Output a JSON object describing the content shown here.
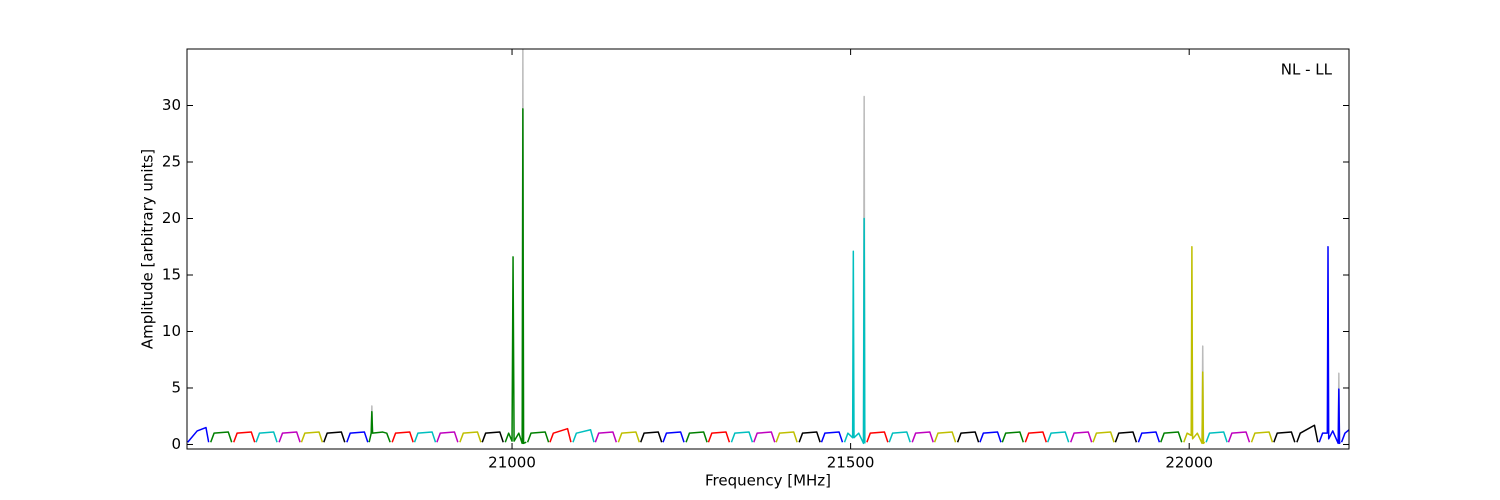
{
  "chart_data": {
    "type": "line",
    "xlabel": "Frequency [MHz]",
    "ylabel": "Amplitude [arbitrary units]",
    "annotation": "NL - LL",
    "xlim": [
      20520,
      22236
    ],
    "ylim": [
      -0.4,
      35
    ],
    "xticks": [
      21000,
      21500,
      22000
    ],
    "yticks": [
      0,
      5,
      10,
      15,
      20,
      25,
      30
    ],
    "series": [
      {
        "color": "#bbbbbb",
        "x": [
          20792,
          20793,
          20794,
          20900,
          21015,
          21016,
          21017,
          21300,
          21519,
          21520,
          21521,
          21800,
          22019,
          22020,
          22021,
          22100,
          22220,
          22221,
          22222
        ],
        "values": [
          1,
          3.4,
          1,
          null,
          0.1,
          35,
          0.1,
          null,
          0.1,
          30.8,
          0.1,
          null,
          0.1,
          8.7,
          0.1,
          null,
          0.1,
          6.3,
          0.1
        ]
      },
      {
        "color": "#0000ff",
        "x": [
          20521,
          20535,
          20548,
          20552
        ],
        "values": [
          0.2,
          1.2,
          1.5,
          0.2
        ]
      },
      {
        "color": "#008000",
        "x": [
          20555,
          20560,
          20581,
          20586
        ],
        "values": [
          0.2,
          1.0,
          1.1,
          0.2
        ]
      },
      {
        "color": "#ff0000",
        "x": [
          20589,
          20594,
          20615,
          20620
        ],
        "values": [
          0.2,
          1.0,
          1.1,
          0.2
        ]
      },
      {
        "color": "#00bfbf",
        "x": [
          20622,
          20627,
          20648,
          20653
        ],
        "values": [
          0.2,
          1.0,
          1.1,
          0.2
        ]
      },
      {
        "color": "#bf00bf",
        "x": [
          20656,
          20661,
          20682,
          20687
        ],
        "values": [
          0.2,
          1.0,
          1.1,
          0.2
        ]
      },
      {
        "color": "#bfbf00",
        "x": [
          20689,
          20694,
          20715,
          20720
        ],
        "values": [
          0.2,
          1.0,
          1.1,
          0.2
        ]
      },
      {
        "color": "#000000",
        "x": [
          20722,
          20727,
          20748,
          20753
        ],
        "values": [
          0.2,
          1.0,
          1.1,
          0.2
        ]
      },
      {
        "color": "#0000ff",
        "x": [
          20756,
          20761,
          20782,
          20787
        ],
        "values": [
          0.2,
          1.0,
          1.1,
          0.2
        ]
      },
      {
        "color": "#008000",
        "x": [
          20789,
          20792,
          20793,
          20794,
          20809,
          20815,
          20820
        ],
        "values": [
          0.2,
          1.0,
          2.9,
          1.0,
          1.1,
          1.0,
          0.2
        ]
      },
      {
        "color": "#ff0000",
        "x": [
          20823,
          20828,
          20849,
          20854
        ],
        "values": [
          0.2,
          1.0,
          1.1,
          0.2
        ]
      },
      {
        "color": "#00bfbf",
        "x": [
          20856,
          20861,
          20882,
          20887
        ],
        "values": [
          0.2,
          1.0,
          1.1,
          0.2
        ]
      },
      {
        "color": "#bf00bf",
        "x": [
          20889,
          20894,
          20915,
          20920
        ],
        "values": [
          0.2,
          1.0,
          1.1,
          0.2
        ]
      },
      {
        "color": "#bfbf00",
        "x": [
          20923,
          20928,
          20949,
          20954
        ],
        "values": [
          0.2,
          1.0,
          1.1,
          0.2
        ]
      },
      {
        "color": "#000000",
        "x": [
          20956,
          20961,
          20982,
          20987
        ],
        "values": [
          0.2,
          1.0,
          1.1,
          0.2
        ]
      },
      {
        "color": "#008000",
        "x": [
          20990,
          20995,
          21000,
          21001.5,
          21003,
          21010,
          21015,
          21016,
          21017,
          21021
        ],
        "values": [
          0.2,
          1.0,
          0.3,
          16.6,
          0.3,
          1.0,
          0.1,
          29.7,
          0.1,
          0.2
        ]
      },
      {
        "color": "#008000",
        "x": [
          21023,
          21028,
          21049,
          21054
        ],
        "values": [
          0.2,
          1.0,
          1.1,
          0.2
        ]
      },
      {
        "color": "#ff0000",
        "x": [
          21056,
          21061,
          21082,
          21087
        ],
        "values": [
          0.2,
          1.0,
          1.4,
          0.2
        ]
      },
      {
        "color": "#00bfbf",
        "x": [
          21090,
          21095,
          21116,
          21121
        ],
        "values": [
          0.2,
          1.0,
          1.3,
          0.2
        ]
      },
      {
        "color": "#bf00bf",
        "x": [
          21123,
          21128,
          21149,
          21154
        ],
        "values": [
          0.2,
          1.0,
          1.1,
          0.2
        ]
      },
      {
        "color": "#bfbf00",
        "x": [
          21157,
          21162,
          21183,
          21188
        ],
        "values": [
          0.2,
          1.0,
          1.1,
          0.2
        ]
      },
      {
        "color": "#000000",
        "x": [
          21190,
          21195,
          21216,
          21221
        ],
        "values": [
          0.2,
          1.0,
          1.1,
          0.2
        ]
      },
      {
        "color": "#0000ff",
        "x": [
          21223,
          21228,
          21249,
          21254
        ],
        "values": [
          0.2,
          1.0,
          1.1,
          0.2
        ]
      },
      {
        "color": "#008000",
        "x": [
          21257,
          21262,
          21283,
          21288
        ],
        "values": [
          0.2,
          1.0,
          1.1,
          0.2
        ]
      },
      {
        "color": "#ff0000",
        "x": [
          21290,
          21295,
          21316,
          21321
        ],
        "values": [
          0.2,
          1.0,
          1.1,
          0.2
        ]
      },
      {
        "color": "#00bfbf",
        "x": [
          21324,
          21329,
          21350,
          21355
        ],
        "values": [
          0.2,
          1.0,
          1.1,
          0.2
        ]
      },
      {
        "color": "#bf00bf",
        "x": [
          21357,
          21362,
          21383,
          21388
        ],
        "values": [
          0.2,
          1.0,
          1.1,
          0.2
        ]
      },
      {
        "color": "#bfbf00",
        "x": [
          21390,
          21395,
          21416,
          21421
        ],
        "values": [
          0.2,
          1.0,
          1.1,
          0.2
        ]
      },
      {
        "color": "#000000",
        "x": [
          21424,
          21429,
          21450,
          21455
        ],
        "values": [
          0.2,
          1.0,
          1.1,
          0.2
        ]
      },
      {
        "color": "#0000ff",
        "x": [
          21457,
          21462,
          21483,
          21488
        ],
        "values": [
          0.2,
          1.0,
          1.1,
          0.2
        ]
      },
      {
        "color": "#00bfbf",
        "x": [
          21491,
          21496,
          21503,
          21504,
          21505,
          21512,
          21519,
          21520,
          21521
        ],
        "values": [
          0.2,
          1.0,
          0.6,
          17.1,
          0.6,
          1.0,
          0.1,
          20,
          0.1
        ]
      },
      {
        "color": "#ff0000",
        "x": [
          21524,
          21529,
          21550,
          21555
        ],
        "values": [
          0.2,
          1.0,
          1.1,
          0.2
        ]
      },
      {
        "color": "#00bfbf",
        "x": [
          21557,
          21562,
          21583,
          21588
        ],
        "values": [
          0.2,
          1.0,
          1.1,
          0.2
        ]
      },
      {
        "color": "#bf00bf",
        "x": [
          21591,
          21596,
          21617,
          21622
        ],
        "values": [
          0.2,
          1.0,
          1.1,
          0.2
        ]
      },
      {
        "color": "#bfbf00",
        "x": [
          21624,
          21629,
          21650,
          21655
        ],
        "values": [
          0.2,
          1.0,
          1.1,
          0.2
        ]
      },
      {
        "color": "#000000",
        "x": [
          21658,
          21663,
          21684,
          21689
        ],
        "values": [
          0.2,
          1.0,
          1.1,
          0.2
        ]
      },
      {
        "color": "#0000ff",
        "x": [
          21691,
          21696,
          21717,
          21722
        ],
        "values": [
          0.2,
          1.0,
          1.1,
          0.2
        ]
      },
      {
        "color": "#008000",
        "x": [
          21724,
          21729,
          21750,
          21755
        ],
        "values": [
          0.2,
          1.0,
          1.1,
          0.2
        ]
      },
      {
        "color": "#ff0000",
        "x": [
          21758,
          21763,
          21784,
          21789
        ],
        "values": [
          0.2,
          1.0,
          1.1,
          0.2
        ]
      },
      {
        "color": "#00bfbf",
        "x": [
          21791,
          21796,
          21817,
          21822
        ],
        "values": [
          0.2,
          1.0,
          1.1,
          0.2
        ]
      },
      {
        "color": "#bf00bf",
        "x": [
          21825,
          21830,
          21851,
          21856
        ],
        "values": [
          0.2,
          1.0,
          1.1,
          0.2
        ]
      },
      {
        "color": "#bfbf00",
        "x": [
          21858,
          21863,
          21884,
          21889
        ],
        "values": [
          0.2,
          1.0,
          1.1,
          0.2
        ]
      },
      {
        "color": "#000000",
        "x": [
          21891,
          21896,
          21917,
          21922
        ],
        "values": [
          0.2,
          1.0,
          1.1,
          0.2
        ]
      },
      {
        "color": "#0000ff",
        "x": [
          21925,
          21930,
          21951,
          21956
        ],
        "values": [
          0.2,
          1.0,
          1.1,
          0.2
        ]
      },
      {
        "color": "#008000",
        "x": [
          21958,
          21963,
          21984,
          21989
        ],
        "values": [
          0.2,
          1.0,
          1.1,
          0.2
        ]
      },
      {
        "color": "#bfbf00",
        "x": [
          21992,
          21997,
          22003,
          22004,
          22005,
          22012,
          22019,
          22020,
          22021,
          22023
        ],
        "values": [
          0.2,
          1.0,
          0.8,
          17.5,
          0.5,
          1.0,
          0.1,
          6.4,
          0.1,
          0.2
        ]
      },
      {
        "color": "#00bfbf",
        "x": [
          22025,
          22030,
          22051,
          22056
        ],
        "values": [
          0.2,
          1.0,
          1.1,
          0.2
        ]
      },
      {
        "color": "#bf00bf",
        "x": [
          22058,
          22063,
          22084,
          22089
        ],
        "values": [
          0.2,
          1.0,
          1.1,
          0.2
        ]
      },
      {
        "color": "#bfbf00",
        "x": [
          22092,
          22097,
          22118,
          22123
        ],
        "values": [
          0.2,
          1.0,
          1.1,
          0.2
        ]
      },
      {
        "color": "#000000",
        "x": [
          22125,
          22130,
          22151,
          22156
        ],
        "values": [
          0.2,
          1.0,
          1.1,
          0.2
        ]
      },
      {
        "color": "#000000",
        "x": [
          22159,
          22164,
          22185,
          22190
        ],
        "values": [
          0.2,
          1.0,
          1.7,
          0.2
        ]
      },
      {
        "color": "#0000ff",
        "x": [
          22192,
          22197,
          22204,
          22205,
          22206,
          22212,
          22220,
          22221,
          22222,
          22223
        ],
        "values": [
          0.2,
          1.0,
          1.0,
          17.5,
          0.5,
          1.2,
          0.1,
          4.9,
          0.1,
          0.2
        ]
      },
      {
        "color": "#0000ff",
        "x": [
          22225,
          22230,
          22236
        ],
        "values": [
          0.2,
          1.0,
          1.3
        ]
      }
    ]
  }
}
